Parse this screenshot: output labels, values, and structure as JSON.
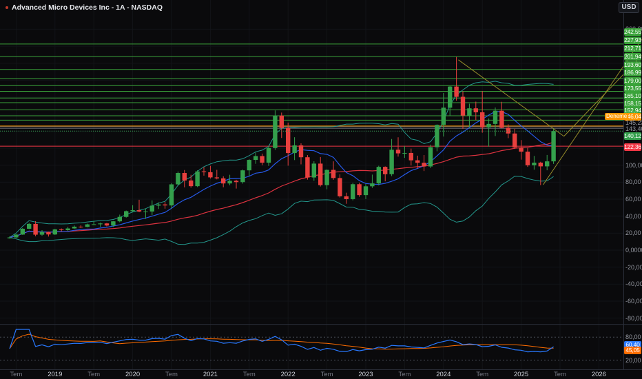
{
  "header": {
    "title": "Advanced Micro Devices Inc - 1A - NASDAQ",
    "currency": "USD"
  },
  "colors": {
    "up": "#34a04c",
    "down": "#e8403e",
    "level_green": "#3aa33a",
    "level_red": "#f23645",
    "level_orange": "#ff9800",
    "grey_line": "#787b86",
    "band": "#26a69a",
    "ma_fast": "#2962ff",
    "ma_slow": "#f23645",
    "rsi": "#2979ff",
    "rsi_ma": "#ff6d00",
    "trend": "#968c2a",
    "axis_text": "#9598a1",
    "grid": "#121418"
  },
  "chart_data": {
    "type": "candlestick",
    "title": "Advanced Micro Devices Inc",
    "timeframe": "1A",
    "exchange": "NASDAQ",
    "currency": "USD",
    "start_month": "2018-06",
    "first_open": 13.9,
    "closes": [
      14.99,
      18.33,
      25.17,
      30.89,
      18.21,
      21.3,
      18.46,
      24.41,
      23.53,
      25.52,
      27.63,
      27.41,
      30.37,
      30.45,
      31.45,
      28.99,
      33.93,
      39.15,
      45.86,
      47.0,
      45.48,
      45.48,
      52.39,
      53.8,
      52.61,
      77.43,
      90.82,
      81.99,
      75.29,
      92.66,
      91.71,
      85.64,
      84.51,
      78.5,
      81.62,
      80.08,
      93.93,
      106.19,
      110.72,
      102.9,
      120.23,
      158.37,
      143.9,
      114.25,
      123.27,
      109.34,
      85.52,
      101.86,
      76.47,
      94.47,
      84.87,
      63.36,
      60.06,
      77.61,
      64.77,
      75.15,
      78.57,
      98.01,
      89.37,
      118.21,
      113.91,
      114.4,
      105.72,
      102.82,
      98.5,
      121.16,
      147.41,
      167.69,
      192.53,
      180.49,
      158.38,
      166.9,
      162.21,
      144.48,
      148.56,
      164.08,
      144.01,
      137.28,
      120.79,
      115.91,
      99.86,
      102.96,
      98.62,
      104.5,
      140.12
    ],
    "highs": [
      16.1,
      18.6,
      25.9,
      32.0,
      34.14,
      23.5,
      21.8,
      25.1,
      25.5,
      27.5,
      29.0,
      29.3,
      31.2,
      34.3,
      32.4,
      32.0,
      34.3,
      41.8,
      46.6,
      52.8,
      59.3,
      49.0,
      58.6,
      56.2,
      56.9,
      78.9,
      92.6,
      94.3,
      88.7,
      94.0,
      97.98,
      99.2,
      94.5,
      86.9,
      88.7,
      82.8,
      94.8,
      107.0,
      114.9,
      113.6,
      122.5,
      164.46,
      161.9,
      150.1,
      132.9,
      125.7,
      111.9,
      104.6,
      109.6,
      95.0,
      104.5,
      89.2,
      67.6,
      79.2,
      79.3,
      77.8,
      88.9,
      99.3,
      98.6,
      130.8,
      132.8,
      122.6,
      119.5,
      111.2,
      111.9,
      124.2,
      148.0,
      184.9,
      193.0,
      227.3,
      186.9,
      172.4,
      174.8,
      187.3,
      155.0,
      167.9,
      174.6,
      148.1,
      142.8,
      129.5,
      120.2,
      110.9,
      104.0,
      112.0,
      143.6
    ],
    "lows": [
      13.6,
      14.5,
      18.0,
      24.7,
      16.3,
      16.9,
      16.0,
      17.9,
      22.3,
      22.5,
      25.2,
      26.0,
      26.9,
      29.8,
      27.4,
      27.9,
      27.3,
      32.8,
      38.3,
      45.0,
      44.6,
      36.75,
      41.2,
      48.4,
      48.8,
      49.1,
      76.0,
      73.9,
      73.5,
      74.2,
      87.7,
      84.3,
      83.3,
      74.0,
      76.3,
      72.5,
      78.3,
      87.2,
      101.6,
      99.8,
      99.1,
      118.0,
      132.0,
      99.4,
      106.0,
      101.0,
      83.0,
      81.6,
      74.9,
      71.6,
      82.8,
      61.9,
      54.57,
      58.6,
      62.8,
      60.1,
      73.2,
      76.2,
      81.0,
      87.1,
      110.1,
      108.6,
      99.6,
      96.2,
      93.1,
      96.6,
      116.4,
      133.7,
      157.8,
      176.0,
      142.8,
      144.4,
      153.1,
      138.2,
      121.8,
      134.3,
      143.3,
      131.8,
      119.1,
      106.5,
      98.0,
      94.7,
      76.48,
      94.0,
      101.5
    ],
    "levels": [
      {
        "v": 242.55,
        "t": "242,55"
      },
      {
        "v": 227.93,
        "t": "227,93"
      },
      {
        "v": 212.71,
        "t": "212,71"
      },
      {
        "v": 201.94,
        "t": "201,94"
      },
      {
        "v": 193.6,
        "t": "193,60"
      },
      {
        "v": 186.99,
        "t": "186,99"
      },
      {
        "v": 179.0,
        "t": "179,00"
      },
      {
        "v": 173.55,
        "t": "173,55"
      },
      {
        "v": 165.1,
        "t": "165,10"
      },
      {
        "v": 158.15,
        "t": "158,15"
      },
      {
        "v": 152.94,
        "t": "152,94"
      }
    ],
    "orange_level": {
      "v": 146.04,
      "t": "146,04",
      "name": "Deneme"
    },
    "grey_levels": [
      {
        "v": 145.23,
        "t": "145,23"
      },
      {
        "v": 143.4,
        "t": "143,40"
      }
    ],
    "red_level": {
      "v": 122.36,
      "t": "122,36"
    },
    "last_price": {
      "v": 140.12,
      "t": "140,12"
    },
    "y_ticks": [
      {
        "v": 260,
        "t": "260,00"
      },
      {
        "v": 100,
        "t": "100,00"
      },
      {
        "v": 80,
        "t": "80,00"
      },
      {
        "v": 60,
        "t": "60,00"
      },
      {
        "v": 40,
        "t": "40,00"
      },
      {
        "v": 20,
        "t": "20,00"
      },
      {
        "v": 0,
        "t": "0,0000"
      },
      {
        "v": -20,
        "t": "-20,00"
      },
      {
        "v": -40,
        "t": "-40,00"
      },
      {
        "v": -60,
        "t": "-60,00"
      },
      {
        "v": -80,
        "t": "-80,00"
      }
    ],
    "x_ticks": [
      {
        "m": 1,
        "t": "Tem",
        "major": false
      },
      {
        "m": 7,
        "t": "2019",
        "major": true
      },
      {
        "m": 13,
        "t": "Tem",
        "major": false
      },
      {
        "m": 19,
        "t": "2020",
        "major": true
      },
      {
        "m": 25,
        "t": "Tem",
        "major": false
      },
      {
        "m": 31,
        "t": "2021",
        "major": true
      },
      {
        "m": 37,
        "t": "Tem",
        "major": false
      },
      {
        "m": 43,
        "t": "2022",
        "major": true
      },
      {
        "m": 49,
        "t": "Tem",
        "major": false
      },
      {
        "m": 55,
        "t": "2023",
        "major": true
      },
      {
        "m": 61,
        "t": "Tem",
        "major": false
      },
      {
        "m": 67,
        "t": "2024",
        "major": true
      },
      {
        "m": 73,
        "t": "Tem",
        "major": false
      },
      {
        "m": 79,
        "t": "2025",
        "major": true
      },
      {
        "m": 85,
        "t": "Tem",
        "major": false
      },
      {
        "m": 91,
        "t": "2026",
        "major": true
      }
    ],
    "indicators": {
      "sma_fast": 10,
      "sma_slow": 30,
      "bb": {
        "period": 20,
        "mult": 2
      },
      "rsi": {
        "period": 14,
        "ma": 14,
        "bands": [
          {
            "v": 80,
            "t": "80,00"
          },
          {
            "v": 20,
            "t": "20,00"
          }
        ],
        "last": {
          "v": 60.4,
          "t": "60,40"
        },
        "ma_last": {
          "v": 45.05,
          "t": "45,05"
        }
      }
    },
    "drawings": [
      {
        "type": "trendline",
        "m1": 69.3,
        "p1": 224,
        "m2": 85.6,
        "p2": 134
      },
      {
        "type": "trendline",
        "m1": 82.4,
        "p1": 77,
        "m2": 97.6,
        "p2": 248
      },
      {
        "type": "trendline",
        "m1": 85.6,
        "p1": 134,
        "m2": 97.6,
        "p2": 229
      }
    ]
  }
}
